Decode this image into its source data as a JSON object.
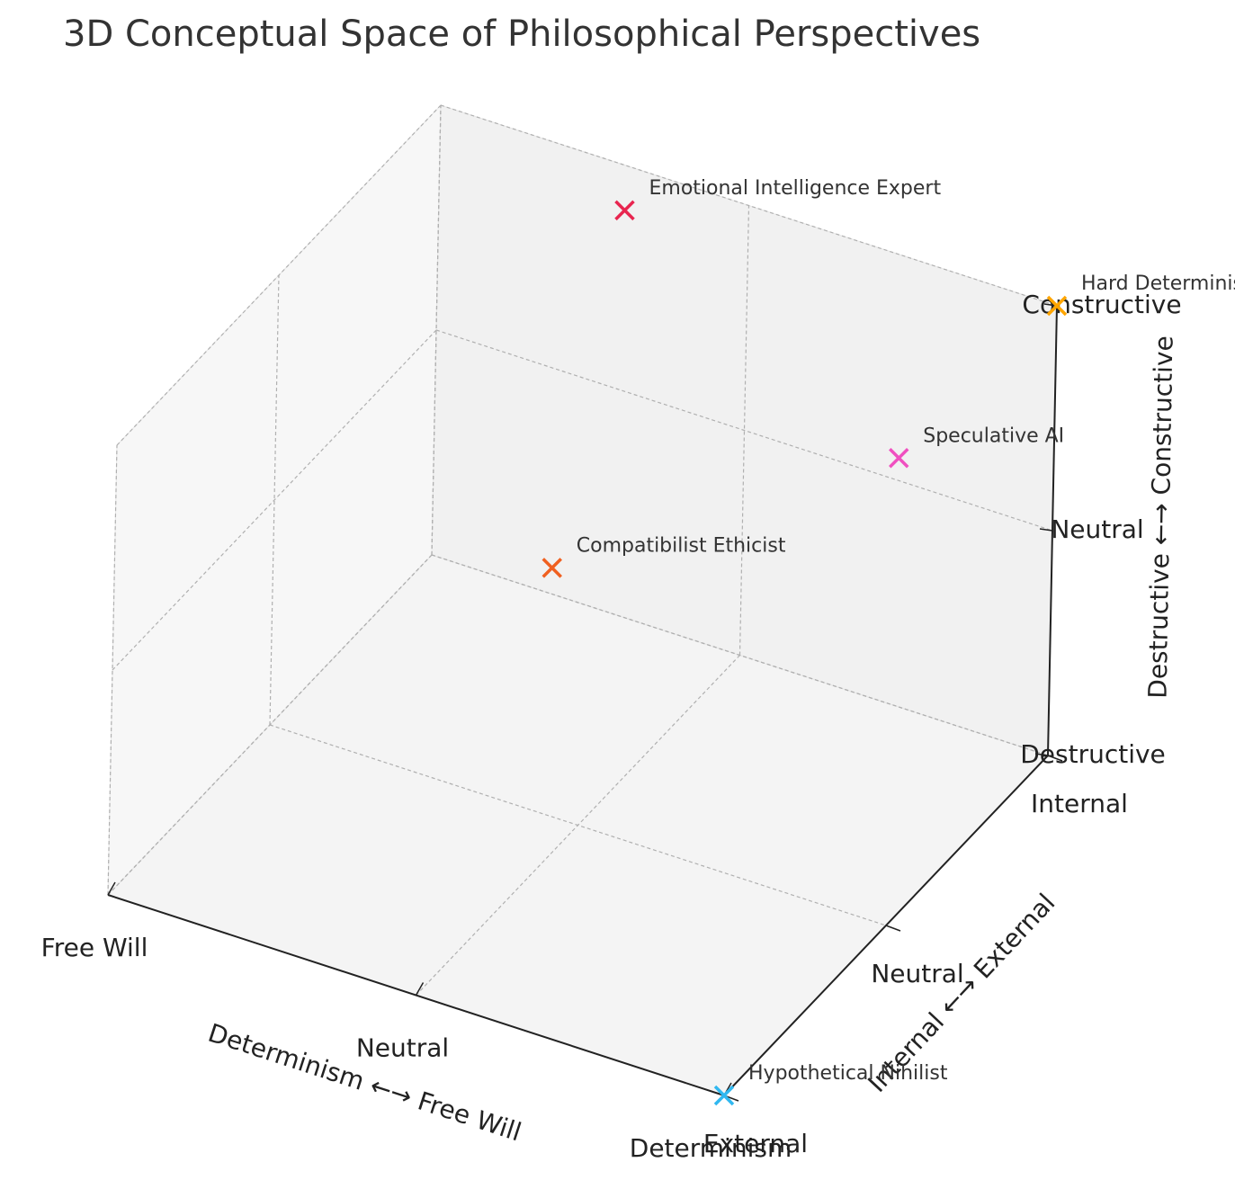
{
  "chart_data": {
    "type": "scatter3d",
    "title": "3D Conceptual Space of Philosophical Perspectives",
    "xlabel": "Determinism ←→ Free Will",
    "ylabel": "Internal ←→ External",
    "zlabel": "Destructive ←→ Constructive",
    "xlim": [
      -1,
      1
    ],
    "ylim": [
      -1,
      1
    ],
    "zlim": [
      -1,
      1
    ],
    "xticks": [
      {
        "value": -1,
        "label": "Free Will"
      },
      {
        "value": 0,
        "label": "Neutral"
      },
      {
        "value": 1,
        "label": "Determinism"
      }
    ],
    "yticks": [
      {
        "value": -1,
        "label": "External"
      },
      {
        "value": 0,
        "label": "Neutral"
      },
      {
        "value": 1,
        "label": "Internal"
      }
    ],
    "zticks": [
      {
        "value": -1,
        "label": "Destructive"
      },
      {
        "value": 0,
        "label": "Neutral"
      },
      {
        "value": 1,
        "label": "Constructive"
      }
    ],
    "grid": true,
    "points": [
      {
        "label": "Emotional Intelligence Expert",
        "color": "#e8254f",
        "x": -0.4,
        "y": 1,
        "z": 0.8
      },
      {
        "label": "Hard Determinism",
        "color": "#ffa500",
        "x": 1,
        "y": 1,
        "z": 1
      },
      {
        "label": "Speculative AI",
        "color": "#f050c0",
        "x": 0.5,
        "y": 1,
        "z": 0.1
      },
      {
        "label": "Compatibilist Ethicist",
        "color": "#f06020",
        "x": -0.1,
        "y": 0,
        "z": 0.1
      },
      {
        "label": "Hypothetical Nihilist",
        "color": "#30b8f0",
        "x": 1,
        "y": -1,
        "z": -1
      }
    ]
  }
}
